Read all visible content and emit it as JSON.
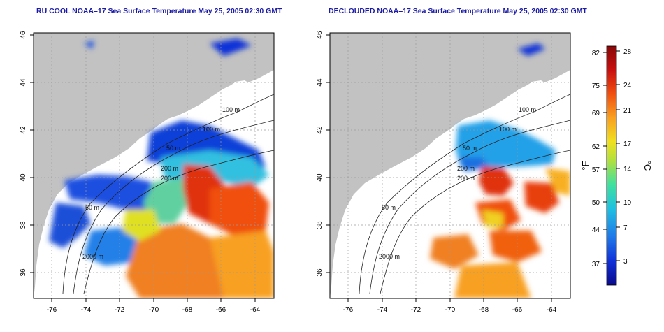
{
  "panels": [
    {
      "title": "RU COOL NOAA–17 Sea Surface Temperature May 25, 2005 02:30 GMT",
      "x_ticks": [
        "-76",
        "-74",
        "-72",
        "-70",
        "-68",
        "-66",
        "-64"
      ],
      "y_ticks": [
        "36",
        "38",
        "40",
        "42",
        "44",
        "46"
      ],
      "contour_labels": [
        "100 m",
        "100 m",
        "200 m",
        "50 m",
        "50 m",
        "2000 m",
        "200 m"
      ]
    },
    {
      "title": "DECLOUDED NOAA–17 Sea Surface Temperature May 25, 2005 02:30 GMT",
      "x_ticks": [
        "-76",
        "-74",
        "-72",
        "-70",
        "-68",
        "-66",
        "-64"
      ],
      "y_ticks": [
        "36",
        "38",
        "40",
        "42",
        "44",
        "46"
      ],
      "contour_labels": [
        "100 m",
        "100 m",
        "200 m",
        "50 m",
        "50 m",
        "2000 m",
        "200 m"
      ]
    }
  ],
  "colorbar": {
    "f_label": "°F",
    "c_label": "°C",
    "f_ticks": [
      "82",
      "75",
      "69",
      "62",
      "57",
      "50",
      "44",
      "37"
    ],
    "c_ticks": [
      "28",
      "24",
      "21",
      "17",
      "14",
      "10",
      "7",
      "3"
    ],
    "colors": [
      "#0a0a8a",
      "#1030d8",
      "#1f78e8",
      "#20c0e0",
      "#40e0a0",
      "#b0e040",
      "#f0e020",
      "#f8a020",
      "#f05010",
      "#c81010",
      "#880808"
    ]
  },
  "colors": {
    "land": "#c2c2c2",
    "ocean_empty": "#ffffff",
    "frame": "#000000",
    "title": "#1a1aa6"
  }
}
